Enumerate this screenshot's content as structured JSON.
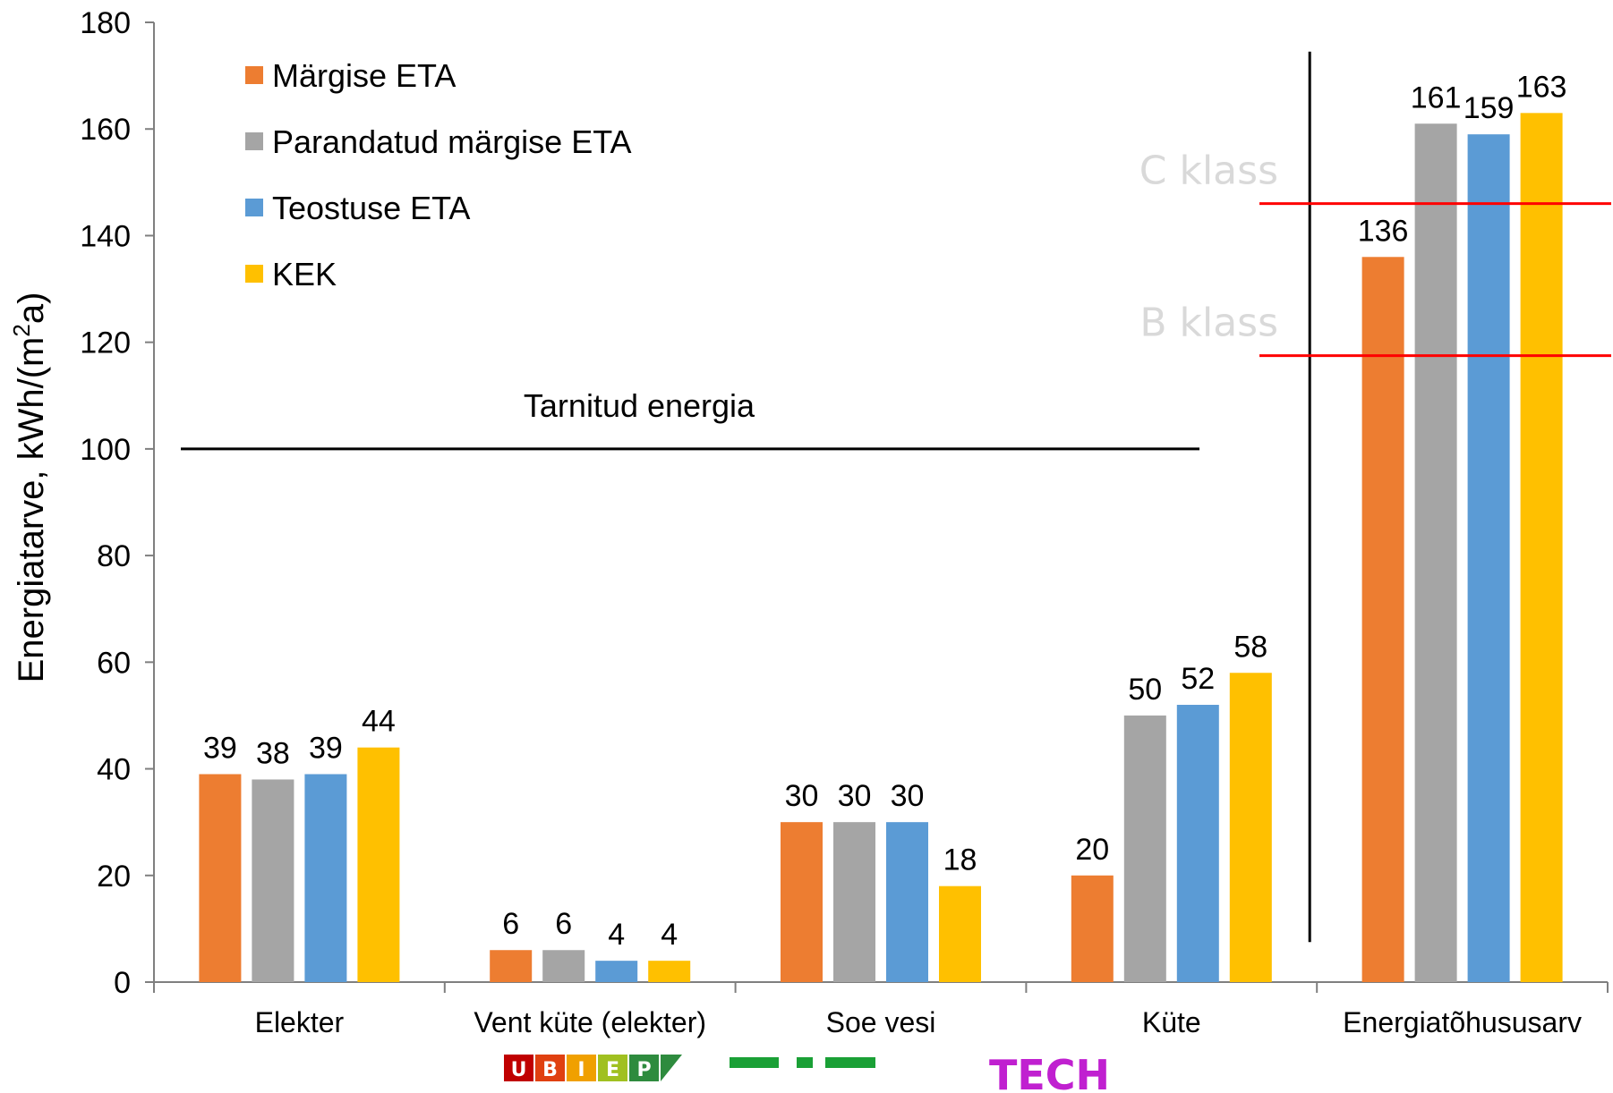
{
  "chart_data": {
    "type": "bar",
    "title": "",
    "xlabel": "",
    "ylabel": "Energiatarve, kWh/(m²a)",
    "ylabel_main": "Energiatarve, kWh/(m",
    "ylabel_sup": "2",
    "ylabel_end": "a)",
    "ylim": [
      0,
      180
    ],
    "yticks": [
      0,
      20,
      40,
      60,
      80,
      100,
      120,
      140,
      160,
      180
    ],
    "grid": false,
    "legend_position": "top-left",
    "categories": [
      "Elekter",
      "Vent küte (elekter)",
      "Soe vesi",
      "Küte",
      "Energiatõhususarv"
    ],
    "series": [
      {
        "name": "Märgise ETA",
        "color": "#ed7d31",
        "values": [
          39,
          6,
          30,
          20,
          136
        ],
        "labels": [
          "39",
          "6",
          "30",
          "20",
          "136"
        ]
      },
      {
        "name": "Parandatud märgise ETA",
        "color": "#a5a5a5",
        "values": [
          38,
          6,
          30,
          50,
          161
        ],
        "labels": [
          "38",
          "6",
          "30",
          "50",
          "161"
        ]
      },
      {
        "name": "Teostuse ETA",
        "color": "#5b9bd5",
        "values": [
          39,
          4,
          30,
          52,
          159
        ],
        "labels": [
          "39",
          "4",
          "30",
          "52",
          "159"
        ]
      },
      {
        "name": "KEK",
        "color": "#ffc000",
        "values": [
          44,
          4,
          18,
          58,
          163
        ],
        "labels": [
          "44",
          "4",
          "18",
          "58",
          "163"
        ]
      }
    ],
    "annotations": {
      "delivered_energy": {
        "text": "Tarnitud energia",
        "y": 100
      },
      "class_lines": [
        {
          "text": "C klass",
          "y": 146,
          "color": "#ff0000"
        },
        {
          "text": "B klass",
          "y": 117.5,
          "color": "#ff0000"
        }
      ]
    }
  },
  "logos": {
    "ubiep_letters": [
      "U",
      "B",
      "I",
      "E",
      "P"
    ],
    "ubiep_colors": [
      "#c00000",
      "#e04010",
      "#f0a000",
      "#a0c020",
      "#2e8b3e"
    ],
    "middle_color": "#1aa036",
    "tech_text": "TECH",
    "tech_color": "#c020d0"
  }
}
